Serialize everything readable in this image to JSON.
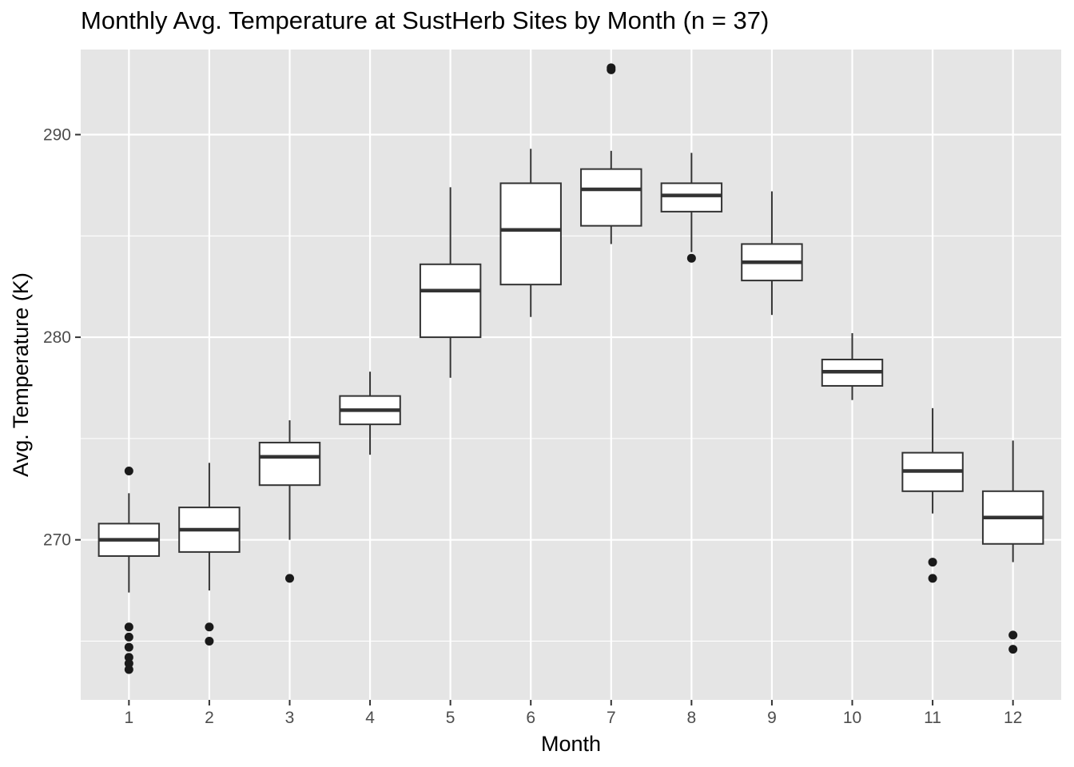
{
  "chart_data": {
    "type": "boxplot",
    "title": "Monthly Avg. Temperature at SustHerb Sites by Month (n = 37)",
    "xlabel": "Month",
    "ylabel": "Avg. Temperature (K)",
    "ylim": [
      262.1,
      294.2
    ],
    "y_ticks": [
      270,
      280,
      290
    ],
    "y_minor_ticks": [
      265,
      275,
      285
    ],
    "grid": true,
    "legend": "none",
    "colors": {
      "panel": "#e5e5e5",
      "grid": "#ffffff",
      "box_fill": "#ffffff",
      "line": "#333333",
      "point": "#1a1a1a"
    },
    "categories": [
      "1",
      "2",
      "3",
      "4",
      "5",
      "6",
      "7",
      "8",
      "9",
      "10",
      "11",
      "12"
    ],
    "boxes": [
      {
        "month": "1",
        "whisker_low": 267.4,
        "q1": 269.2,
        "median": 270.0,
        "q3": 270.8,
        "whisker_high": 272.3,
        "outliers": [
          273.4,
          265.7,
          265.2,
          264.7,
          264.2,
          263.9,
          263.6
        ]
      },
      {
        "month": "2",
        "whisker_low": 267.5,
        "q1": 269.4,
        "median": 270.5,
        "q3": 271.6,
        "whisker_high": 273.8,
        "outliers": [
          265.7,
          265.0
        ]
      },
      {
        "month": "3",
        "whisker_low": 270.0,
        "q1": 272.7,
        "median": 274.1,
        "q3": 274.8,
        "whisker_high": 275.9,
        "outliers": [
          268.1
        ]
      },
      {
        "month": "4",
        "whisker_low": 274.2,
        "q1": 275.7,
        "median": 276.4,
        "q3": 277.1,
        "whisker_high": 278.3,
        "outliers": []
      },
      {
        "month": "5",
        "whisker_low": 278.0,
        "q1": 280.0,
        "median": 282.3,
        "q3": 283.6,
        "whisker_high": 287.4,
        "outliers": []
      },
      {
        "month": "6",
        "whisker_low": 281.0,
        "q1": 282.6,
        "median": 285.3,
        "q3": 287.6,
        "whisker_high": 289.3,
        "outliers": []
      },
      {
        "month": "7",
        "whisker_low": 284.6,
        "q1": 285.5,
        "median": 287.3,
        "q3": 288.3,
        "whisker_high": 289.2,
        "outliers": [
          293.2,
          293.3
        ]
      },
      {
        "month": "8",
        "whisker_low": 284.2,
        "q1": 286.2,
        "median": 287.0,
        "q3": 287.6,
        "whisker_high": 289.1,
        "outliers": [
          283.9
        ]
      },
      {
        "month": "9",
        "whisker_low": 281.1,
        "q1": 282.8,
        "median": 283.7,
        "q3": 284.6,
        "whisker_high": 287.2,
        "outliers": []
      },
      {
        "month": "10",
        "whisker_low": 276.9,
        "q1": 277.6,
        "median": 278.3,
        "q3": 278.9,
        "whisker_high": 280.2,
        "outliers": []
      },
      {
        "month": "11",
        "whisker_low": 271.3,
        "q1": 272.4,
        "median": 273.4,
        "q3": 274.3,
        "whisker_high": 276.5,
        "outliers": [
          268.9,
          268.1
        ]
      },
      {
        "month": "12",
        "whisker_low": 268.9,
        "q1": 269.8,
        "median": 271.1,
        "q3": 272.4,
        "whisker_high": 274.9,
        "outliers": [
          265.3,
          264.6
        ]
      }
    ]
  }
}
